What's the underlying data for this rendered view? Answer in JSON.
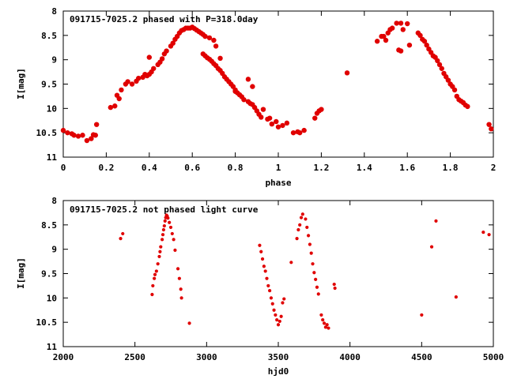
{
  "chart_data": [
    {
      "type": "scatter",
      "title": "091715-7025.2 phased with P=318.0day",
      "xlabel": "phase",
      "ylabel": "I[mag]",
      "xlim": [
        0,
        2
      ],
      "ylim": [
        8,
        11
      ],
      "y_inverted": true,
      "xticks": [
        0,
        0.2,
        0.4,
        0.6,
        0.8,
        1,
        1.2,
        1.4,
        1.6,
        1.8,
        2
      ],
      "yticks": [
        8,
        8.5,
        9,
        9.5,
        10,
        10.5,
        11
      ],
      "xtick_labels": [
        "0",
        "0.2",
        "0.4",
        "0.6",
        "0.8",
        "1",
        "1.2",
        "1.4",
        "1.6",
        "1.8",
        "2"
      ],
      "ytick_labels": [
        "8",
        "8.5",
        "9",
        "9.5",
        "10",
        "10.5",
        "11"
      ],
      "marker_color": "#e00000",
      "points": [
        [
          0.0,
          10.45
        ],
        [
          0.02,
          10.5
        ],
        [
          0.04,
          10.52
        ],
        [
          0.05,
          10.55
        ],
        [
          0.07,
          10.57
        ],
        [
          0.09,
          10.55
        ],
        [
          0.11,
          10.66
        ],
        [
          0.13,
          10.62
        ],
        [
          0.14,
          10.54
        ],
        [
          0.15,
          10.55
        ],
        [
          0.155,
          10.33
        ],
        [
          0.22,
          9.98
        ],
        [
          0.24,
          9.95
        ],
        [
          0.25,
          9.73
        ],
        [
          0.26,
          9.8
        ],
        [
          0.27,
          9.62
        ],
        [
          0.29,
          9.5
        ],
        [
          0.3,
          9.45
        ],
        [
          0.32,
          9.5
        ],
        [
          0.34,
          9.44
        ],
        [
          0.35,
          9.38
        ],
        [
          0.37,
          9.36
        ],
        [
          0.38,
          9.3
        ],
        [
          0.39,
          9.33
        ],
        [
          0.4,
          9.3
        ],
        [
          0.41,
          9.25
        ],
        [
          0.4,
          8.95
        ],
        [
          0.42,
          9.18
        ],
        [
          0.44,
          9.1
        ],
        [
          0.45,
          9.05
        ],
        [
          0.46,
          8.98
        ],
        [
          0.47,
          8.88
        ],
        [
          0.48,
          8.82
        ],
        [
          0.5,
          8.72
        ],
        [
          0.51,
          8.66
        ],
        [
          0.52,
          8.58
        ],
        [
          0.53,
          8.52
        ],
        [
          0.54,
          8.45
        ],
        [
          0.55,
          8.4
        ],
        [
          0.56,
          8.38
        ],
        [
          0.57,
          8.35
        ],
        [
          0.58,
          8.35
        ],
        [
          0.59,
          8.35
        ],
        [
          0.6,
          8.33
        ],
        [
          0.61,
          8.36
        ],
        [
          0.62,
          8.39
        ],
        [
          0.63,
          8.42
        ],
        [
          0.64,
          8.45
        ],
        [
          0.65,
          8.48
        ],
        [
          0.66,
          8.52
        ],
        [
          0.68,
          8.55
        ],
        [
          0.7,
          8.6
        ],
        [
          0.71,
          8.72
        ],
        [
          0.65,
          8.88
        ],
        [
          0.66,
          8.92
        ],
        [
          0.67,
          8.96
        ],
        [
          0.68,
          8.99
        ],
        [
          0.69,
          9.03
        ],
        [
          0.7,
          9.08
        ],
        [
          0.71,
          9.12
        ],
        [
          0.72,
          9.18
        ],
        [
          0.73,
          9.22
        ],
        [
          0.74,
          9.28
        ],
        [
          0.75,
          9.35
        ],
        [
          0.76,
          9.4
        ],
        [
          0.77,
          9.45
        ],
        [
          0.78,
          9.5
        ],
        [
          0.79,
          9.55
        ],
        [
          0.8,
          9.62
        ],
        [
          0.81,
          9.68
        ],
        [
          0.82,
          9.72
        ],
        [
          0.83,
          9.76
        ],
        [
          0.84,
          9.82
        ],
        [
          0.86,
          9.86
        ],
        [
          0.87,
          9.9
        ],
        [
          0.88,
          9.92
        ],
        [
          0.89,
          9.98
        ],
        [
          0.9,
          10.05
        ],
        [
          0.91,
          10.12
        ],
        [
          0.92,
          10.18
        ],
        [
          0.93,
          10.02
        ],
        [
          0.95,
          10.22
        ],
        [
          0.96,
          10.2
        ],
        [
          0.97,
          10.32
        ],
        [
          0.99,
          10.27
        ],
        [
          1.0,
          10.38
        ],
        [
          1.02,
          10.35
        ],
        [
          1.04,
          10.3
        ],
        [
          0.73,
          8.97
        ],
        [
          0.8,
          9.65
        ],
        [
          0.86,
          9.4
        ],
        [
          0.88,
          9.55
        ],
        [
          1.07,
          10.5
        ],
        [
          1.09,
          10.48
        ],
        [
          1.1,
          10.5
        ],
        [
          1.12,
          10.45
        ],
        [
          1.17,
          10.2
        ],
        [
          1.18,
          10.1
        ],
        [
          1.19,
          10.05
        ],
        [
          1.2,
          10.02
        ],
        [
          1.32,
          9.27
        ],
        [
          1.46,
          8.62
        ],
        [
          1.48,
          8.52
        ],
        [
          1.49,
          8.52
        ],
        [
          1.5,
          8.6
        ],
        [
          1.51,
          8.45
        ],
        [
          1.52,
          8.38
        ],
        [
          1.53,
          8.35
        ],
        [
          1.55,
          8.25
        ],
        [
          1.57,
          8.25
        ],
        [
          1.58,
          8.38
        ],
        [
          1.6,
          8.26
        ],
        [
          1.61,
          8.7
        ],
        [
          1.56,
          8.8
        ],
        [
          1.57,
          8.82
        ],
        [
          1.65,
          8.45
        ],
        [
          1.66,
          8.5
        ],
        [
          1.67,
          8.58
        ],
        [
          1.68,
          8.62
        ],
        [
          1.69,
          8.7
        ],
        [
          1.7,
          8.78
        ],
        [
          1.71,
          8.85
        ],
        [
          1.72,
          8.92
        ],
        [
          1.73,
          8.95
        ],
        [
          1.74,
          9.02
        ],
        [
          1.75,
          9.1
        ],
        [
          1.76,
          9.18
        ],
        [
          1.77,
          9.28
        ],
        [
          1.78,
          9.35
        ],
        [
          1.79,
          9.42
        ],
        [
          1.8,
          9.5
        ],
        [
          1.81,
          9.55
        ],
        [
          1.82,
          9.62
        ],
        [
          1.83,
          9.75
        ],
        [
          1.84,
          9.82
        ],
        [
          1.85,
          9.85
        ],
        [
          1.86,
          9.88
        ],
        [
          1.87,
          9.93
        ],
        [
          1.88,
          9.96
        ],
        [
          1.98,
          10.33
        ],
        [
          1.99,
          10.42
        ]
      ]
    },
    {
      "type": "scatter",
      "title": "091715-7025.2 not phased light curve",
      "xlabel": "hjd0",
      "ylabel": "I[mag]",
      "xlim": [
        2000,
        5000
      ],
      "ylim": [
        8,
        11
      ],
      "y_inverted": true,
      "xticks": [
        2000,
        2500,
        3000,
        3500,
        4000,
        4500,
        5000
      ],
      "yticks": [
        8,
        8.5,
        9,
        9.5,
        10,
        10.5,
        11
      ],
      "xtick_labels": [
        "2000",
        "2500",
        "3000",
        "3500",
        "4000",
        "4500",
        "5000"
      ],
      "ytick_labels": [
        "8",
        "8.5",
        "9",
        "9.5",
        "10",
        "10.5",
        "11"
      ],
      "marker_color": "#e00000",
      "points": [
        [
          2400,
          8.78
        ],
        [
          2415,
          8.68
        ],
        [
          2620,
          9.93
        ],
        [
          2625,
          9.75
        ],
        [
          2635,
          9.6
        ],
        [
          2640,
          9.52
        ],
        [
          2650,
          9.45
        ],
        [
          2660,
          9.3
        ],
        [
          2670,
          9.15
        ],
        [
          2675,
          9.05
        ],
        [
          2680,
          8.95
        ],
        [
          2690,
          8.8
        ],
        [
          2695,
          8.7
        ],
        [
          2700,
          8.6
        ],
        [
          2705,
          8.52
        ],
        [
          2710,
          8.42
        ],
        [
          2715,
          8.35
        ],
        [
          2720,
          8.3
        ],
        [
          2725,
          8.32
        ],
        [
          2730,
          8.36
        ],
        [
          2740,
          8.45
        ],
        [
          2750,
          8.55
        ],
        [
          2760,
          8.68
        ],
        [
          2770,
          8.8
        ],
        [
          2780,
          9.02
        ],
        [
          2800,
          9.4
        ],
        [
          2810,
          9.6
        ],
        [
          2820,
          9.82
        ],
        [
          2825,
          10.0
        ],
        [
          2880,
          10.52
        ],
        [
          3370,
          8.92
        ],
        [
          3380,
          9.05
        ],
        [
          3390,
          9.2
        ],
        [
          3400,
          9.35
        ],
        [
          3410,
          9.45
        ],
        [
          3420,
          9.6
        ],
        [
          3430,
          9.75
        ],
        [
          3440,
          9.85
        ],
        [
          3450,
          10.0
        ],
        [
          3460,
          10.12
        ],
        [
          3470,
          10.25
        ],
        [
          3480,
          10.35
        ],
        [
          3490,
          10.45
        ],
        [
          3500,
          10.55
        ],
        [
          3510,
          10.48
        ],
        [
          3520,
          10.38
        ],
        [
          3530,
          10.1
        ],
        [
          3540,
          10.02
        ],
        [
          3590,
          9.27
        ],
        [
          3630,
          8.78
        ],
        [
          3640,
          8.6
        ],
        [
          3650,
          8.5
        ],
        [
          3660,
          8.35
        ],
        [
          3670,
          8.28
        ],
        [
          3690,
          8.38
        ],
        [
          3700,
          8.55
        ],
        [
          3710,
          8.72
        ],
        [
          3720,
          8.9
        ],
        [
          3730,
          9.08
        ],
        [
          3740,
          9.3
        ],
        [
          3750,
          9.48
        ],
        [
          3760,
          9.62
        ],
        [
          3770,
          9.78
        ],
        [
          3780,
          9.92
        ],
        [
          3800,
          10.35
        ],
        [
          3810,
          10.45
        ],
        [
          3820,
          10.52
        ],
        [
          3830,
          10.6
        ],
        [
          3840,
          10.55
        ],
        [
          3850,
          10.62
        ],
        [
          3890,
          9.72
        ],
        [
          3895,
          9.8
        ],
        [
          4500,
          10.35
        ],
        [
          4570,
          8.95
        ],
        [
          4600,
          8.42
        ],
        [
          4740,
          9.98
        ],
        [
          4930,
          8.65
        ],
        [
          4970,
          8.7
        ]
      ]
    }
  ]
}
